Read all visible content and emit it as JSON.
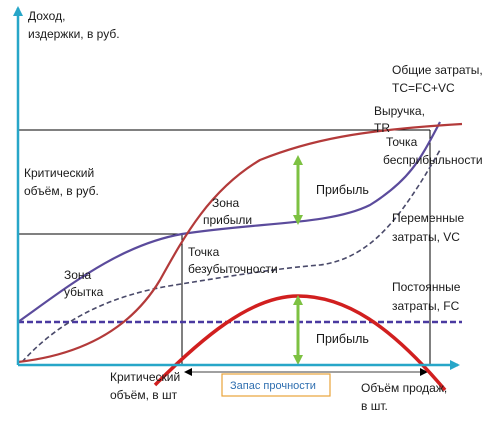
{
  "colors": {
    "axis": "#27a6c8",
    "total_cost": "#5b4b9c",
    "revenue": "#b33a3a",
    "variable_cost": "#4a4a6a",
    "fixed_cost": "#4a3aa0",
    "profit_curve": "#d11f1f",
    "profit_arrow": "#7dc142",
    "guide": "#000000",
    "margin_box": "#e9a33a",
    "margin_text": "#2f6fb0"
  },
  "labels": {
    "y_axis_title_1": "Доход,",
    "y_axis_title_2": "издержки, в руб.",
    "critical_rub_1": "Критический",
    "critical_rub_2": "объём, в руб.",
    "profit_zone_1": "Зона",
    "profit_zone_2": "прибыли",
    "loss_zone_1": "Зона",
    "loss_zone_2": "убытка",
    "breakeven_1": "Точка",
    "breakeven_2": "безубыточности",
    "total_cost_1": "Общие затраты,",
    "total_cost_2": "TC=FC+VC",
    "revenue_1": "Выручка,",
    "revenue_2": "TR",
    "non_profit_1": "Точка",
    "non_profit_2": "бесприбыльности",
    "variable_cost_1": "Переменные",
    "variable_cost_2": "затраты, VC",
    "fixed_cost_1": "Постоянные",
    "fixed_cost_2": "затраты, FC",
    "profit_upper": "Прибыль",
    "profit_lower": "Прибыль",
    "critical_qty_1": "Критический",
    "critical_qty_2": "объём, в шт",
    "safety_margin": "Запас прочности",
    "sales_volume_1": "Объём продаж,",
    "sales_volume_2": "в шт."
  }
}
